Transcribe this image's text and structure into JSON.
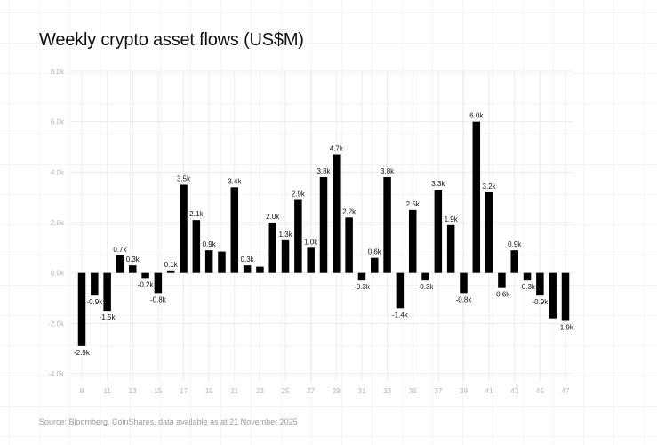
{
  "chart_data": {
    "type": "bar",
    "title": "Weekly crypto asset flows (US$M)",
    "source": "Source: Bloomberg, CoinShares, data available as at 21 November 2025",
    "xlabel": "",
    "ylabel": "",
    "ylim": [
      -4000,
      8000
    ],
    "yticks": [
      -4000,
      -2000,
      0,
      2000,
      4000,
      6000,
      8000
    ],
    "ytick_labels": [
      "-4.0k",
      "-2.0k",
      "0.0k",
      "2.0k",
      "4.0k",
      "6.0k",
      "8.0k"
    ],
    "grid": true,
    "categories": [
      9,
      10,
      11,
      12,
      13,
      14,
      15,
      16,
      17,
      18,
      19,
      20,
      21,
      22,
      23,
      24,
      25,
      26,
      27,
      28,
      29,
      30,
      31,
      32,
      33,
      34,
      35,
      36,
      37,
      38,
      39,
      40,
      41,
      42,
      43,
      44,
      45,
      46,
      47
    ],
    "xtick_labels": [
      "9",
      "11",
      "13",
      "15",
      "17",
      "19",
      "21",
      "23",
      "25",
      "27",
      "29",
      "31",
      "33",
      "35",
      "37",
      "39",
      "41",
      "43",
      "45",
      "47"
    ],
    "values": [
      -2900,
      -900,
      -1500,
      700,
      300,
      -200,
      -800,
      100,
      3500,
      2100,
      900,
      850,
      3400,
      300,
      250,
      2000,
      1300,
      2900,
      1000,
      3800,
      4700,
      2200,
      -300,
      600,
      3800,
      -1400,
      2500,
      -300,
      3300,
      1900,
      -800,
      6000,
      3200,
      -600,
      900,
      -300,
      -900,
      -1800,
      -1900
    ],
    "data_labels": [
      "-2.9k",
      "-0.9k",
      "-1.5k",
      "0.7k",
      "0.3k",
      "-0.2k",
      "-0.8k",
      "0.1k",
      "3.5k",
      "2.1k",
      "0.9k",
      null,
      "3.4k",
      "0.3k",
      null,
      "2.0k",
      "1.3k",
      "2.9k",
      "1.0k",
      "3.8k",
      "4.7k",
      "2.2k",
      "-0.3k",
      "0.6k",
      "3.8k",
      "-1.4k",
      "2.5k",
      "-0.3k",
      "3.3k",
      "1.9k",
      "-0.8k",
      "6.0k",
      "3.2k",
      "-0.6k",
      "0.9k",
      "-0.3k",
      "-0.9k",
      null,
      "-1.9k"
    ],
    "bar_color": "#000000"
  }
}
